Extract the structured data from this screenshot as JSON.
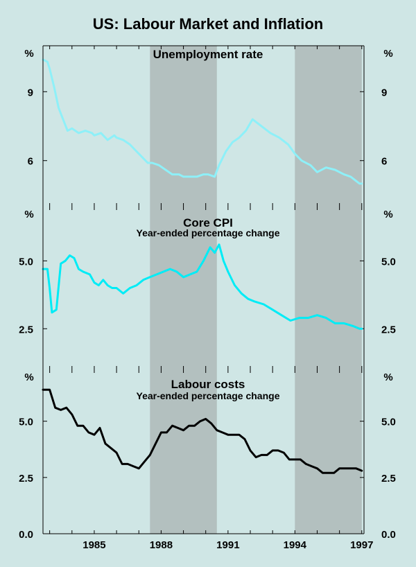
{
  "title": "US: Labour Market and Inflation",
  "chart_data": [
    {
      "type": "line",
      "title": "Unemployment rate",
      "unit": "%",
      "y_ticks": [
        "9",
        "6"
      ],
      "tick_values": [
        9,
        6
      ],
      "ylim": [
        4,
        11
      ],
      "line_color": "#8ef0f8",
      "x": [
        1982.7,
        1982.9,
        1983.0,
        1983.2,
        1983.4,
        1983.6,
        1983.8,
        1984.0,
        1984.3,
        1984.6,
        1984.9,
        1985.0,
        1985.3,
        1985.6,
        1985.9,
        1986.0,
        1986.3,
        1986.6,
        1986.9,
        1987.0,
        1987.2,
        1987.4,
        1987.6,
        1987.9,
        1988.2,
        1988.5,
        1988.8,
        1989.0,
        1989.3,
        1989.6,
        1989.9,
        1990.1,
        1990.4,
        1990.6,
        1990.9,
        1991.2,
        1991.5,
        1991.8,
        1992.1,
        1992.5,
        1992.9,
        1993.3,
        1993.7,
        1994.0,
        1994.3,
        1994.7,
        1995.0,
        1995.4,
        1995.8,
        1996.2,
        1996.5,
        1996.9,
        1997.0
      ],
      "values": [
        10.4,
        10.3,
        10.0,
        9.2,
        8.3,
        7.8,
        7.3,
        7.4,
        7.2,
        7.3,
        7.2,
        7.1,
        7.2,
        6.9,
        7.1,
        7.0,
        6.9,
        6.7,
        6.4,
        6.3,
        6.1,
        5.9,
        5.9,
        5.8,
        5.6,
        5.4,
        5.4,
        5.3,
        5.3,
        5.3,
        5.4,
        5.4,
        5.3,
        5.8,
        6.4,
        6.8,
        7.0,
        7.3,
        7.8,
        7.5,
        7.2,
        7.0,
        6.7,
        6.3,
        6.0,
        5.8,
        5.5,
        5.7,
        5.6,
        5.4,
        5.3,
        5.0,
        5.0
      ],
      "shaded_periods": [
        [
          1987.5,
          1990.5
        ],
        [
          1994.0,
          1997.0
        ]
      ]
    },
    {
      "type": "line",
      "title": "Core CPI",
      "subtitle": "Year-ended percentage change",
      "unit": "%",
      "y_ticks": [
        "5.0",
        "2.5"
      ],
      "tick_values": [
        5.0,
        2.5
      ],
      "ylim": [
        1.0,
        7.0
      ],
      "line_color": "#00ecf6",
      "x": [
        1982.7,
        1982.9,
        1983.0,
        1983.1,
        1983.3,
        1983.5,
        1983.7,
        1983.9,
        1984.1,
        1984.3,
        1984.5,
        1984.8,
        1985.0,
        1985.2,
        1985.4,
        1985.6,
        1985.8,
        1986.0,
        1986.3,
        1986.6,
        1986.9,
        1987.2,
        1987.5,
        1987.8,
        1988.1,
        1988.4,
        1988.7,
        1989.0,
        1989.3,
        1989.6,
        1989.9,
        1990.2,
        1990.4,
        1990.6,
        1990.8,
        1991.0,
        1991.3,
        1991.6,
        1991.9,
        1992.2,
        1992.6,
        1993.0,
        1993.4,
        1993.8,
        1994.2,
        1994.6,
        1995.0,
        1995.4,
        1995.8,
        1996.2,
        1996.6,
        1996.9,
        1997.0
      ],
      "values": [
        4.7,
        4.7,
        4.0,
        3.1,
        3.2,
        4.9,
        5.0,
        5.2,
        5.1,
        4.7,
        4.6,
        4.5,
        4.2,
        4.1,
        4.3,
        4.1,
        4.0,
        4.0,
        3.8,
        4.0,
        4.1,
        4.3,
        4.4,
        4.5,
        4.6,
        4.7,
        4.6,
        4.4,
        4.5,
        4.6,
        5.0,
        5.5,
        5.3,
        5.6,
        5.0,
        4.6,
        4.1,
        3.8,
        3.6,
        3.5,
        3.4,
        3.2,
        3.0,
        2.8,
        2.9,
        2.9,
        3.0,
        2.9,
        2.7,
        2.7,
        2.6,
        2.5,
        2.5
      ],
      "shaded_periods": [
        [
          1987.5,
          1990.5
        ],
        [
          1994.0,
          1997.0
        ]
      ]
    },
    {
      "type": "line",
      "title": "Labour costs",
      "subtitle": "Year-ended percentage change",
      "unit": "%",
      "y_ticks": [
        "5.0",
        "2.5",
        "0.0"
      ],
      "tick_values": [
        5.0,
        2.5,
        0.0
      ],
      "ylim": [
        0.0,
        7.3
      ],
      "x_ticks": [
        "1985",
        "1988",
        "1991",
        "1994",
        "1997"
      ],
      "x_tick_values": [
        1985,
        1988,
        1991,
        1994,
        1997
      ],
      "xlim": [
        1982.7,
        1997.1
      ],
      "line_color": "#000000",
      "x": [
        1982.7,
        1983.0,
        1983.25,
        1983.5,
        1983.75,
        1984.0,
        1984.25,
        1984.5,
        1984.75,
        1985.0,
        1985.25,
        1985.5,
        1985.75,
        1986.0,
        1986.25,
        1986.5,
        1986.75,
        1987.0,
        1987.25,
        1987.5,
        1987.75,
        1988.0,
        1988.25,
        1988.5,
        1988.75,
        1989.0,
        1989.25,
        1989.5,
        1989.75,
        1990.0,
        1990.25,
        1990.5,
        1990.75,
        1991.0,
        1991.25,
        1991.5,
        1991.75,
        1992.0,
        1992.25,
        1992.5,
        1992.75,
        1993.0,
        1993.25,
        1993.5,
        1993.75,
        1994.0,
        1994.25,
        1994.5,
        1994.75,
        1995.0,
        1995.25,
        1995.5,
        1995.75,
        1996.0,
        1996.25,
        1996.5,
        1996.75,
        1997.0
      ],
      "values": [
        6.4,
        6.4,
        5.6,
        5.5,
        5.6,
        5.3,
        4.8,
        4.8,
        4.5,
        4.4,
        4.7,
        4.0,
        3.8,
        3.6,
        3.1,
        3.1,
        3.0,
        2.9,
        3.2,
        3.5,
        4.0,
        4.5,
        4.5,
        4.8,
        4.7,
        4.6,
        4.8,
        4.8,
        5.0,
        5.1,
        4.9,
        4.6,
        4.5,
        4.4,
        4.4,
        4.4,
        4.2,
        3.7,
        3.4,
        3.5,
        3.5,
        3.7,
        3.7,
        3.6,
        3.3,
        3.3,
        3.3,
        3.1,
        3.0,
        2.9,
        2.7,
        2.7,
        2.7,
        2.9,
        2.9,
        2.9,
        2.9,
        2.8
      ],
      "shaded_periods": [
        [
          1987.5,
          1990.5
        ],
        [
          1994.0,
          1997.0
        ]
      ]
    }
  ]
}
